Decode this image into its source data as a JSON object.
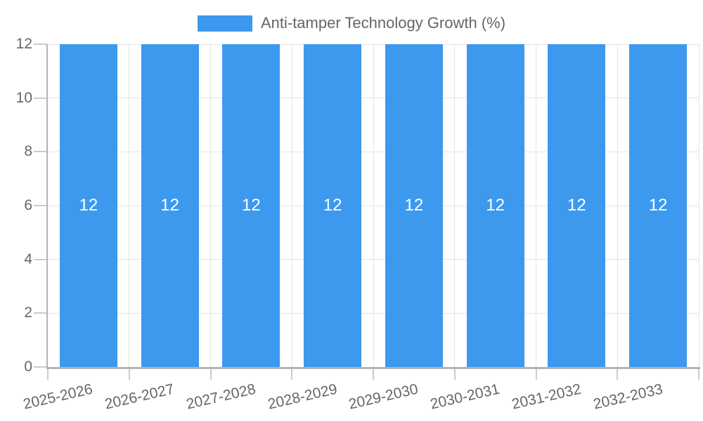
{
  "legend": {
    "label": "Anti-tamper Technology Growth (%)"
  },
  "chart_data": {
    "type": "bar",
    "title": "Anti-tamper Technology Growth (%)",
    "series_name": "Anti-tamper Technology Growth (%)",
    "categories": [
      "2025-2026",
      "2026-2027",
      "2027-2028",
      "2028-2029",
      "2029-2030",
      "2030-2031",
      "2031-2032",
      "2032-2033"
    ],
    "values": [
      12,
      12,
      12,
      12,
      12,
      12,
      12,
      12
    ],
    "data_labels": [
      "12",
      "12",
      "12",
      "12",
      "12",
      "12",
      "12",
      "12"
    ],
    "xlabel": "",
    "ylabel": "",
    "ylim": [
      0,
      12
    ],
    "yticks": [
      0,
      2,
      4,
      6,
      8,
      10,
      12
    ],
    "grid": true,
    "legend_position": "top",
    "x_tick_rotation_deg": -13,
    "colors": {
      "bar": "#3c99ee",
      "bar_label": "#ffffff",
      "text": "#666666",
      "grid": "#e4e4e4",
      "tick": "#cbcbcb",
      "axis": "#b3b3b3",
      "background": "#ffffff"
    }
  }
}
